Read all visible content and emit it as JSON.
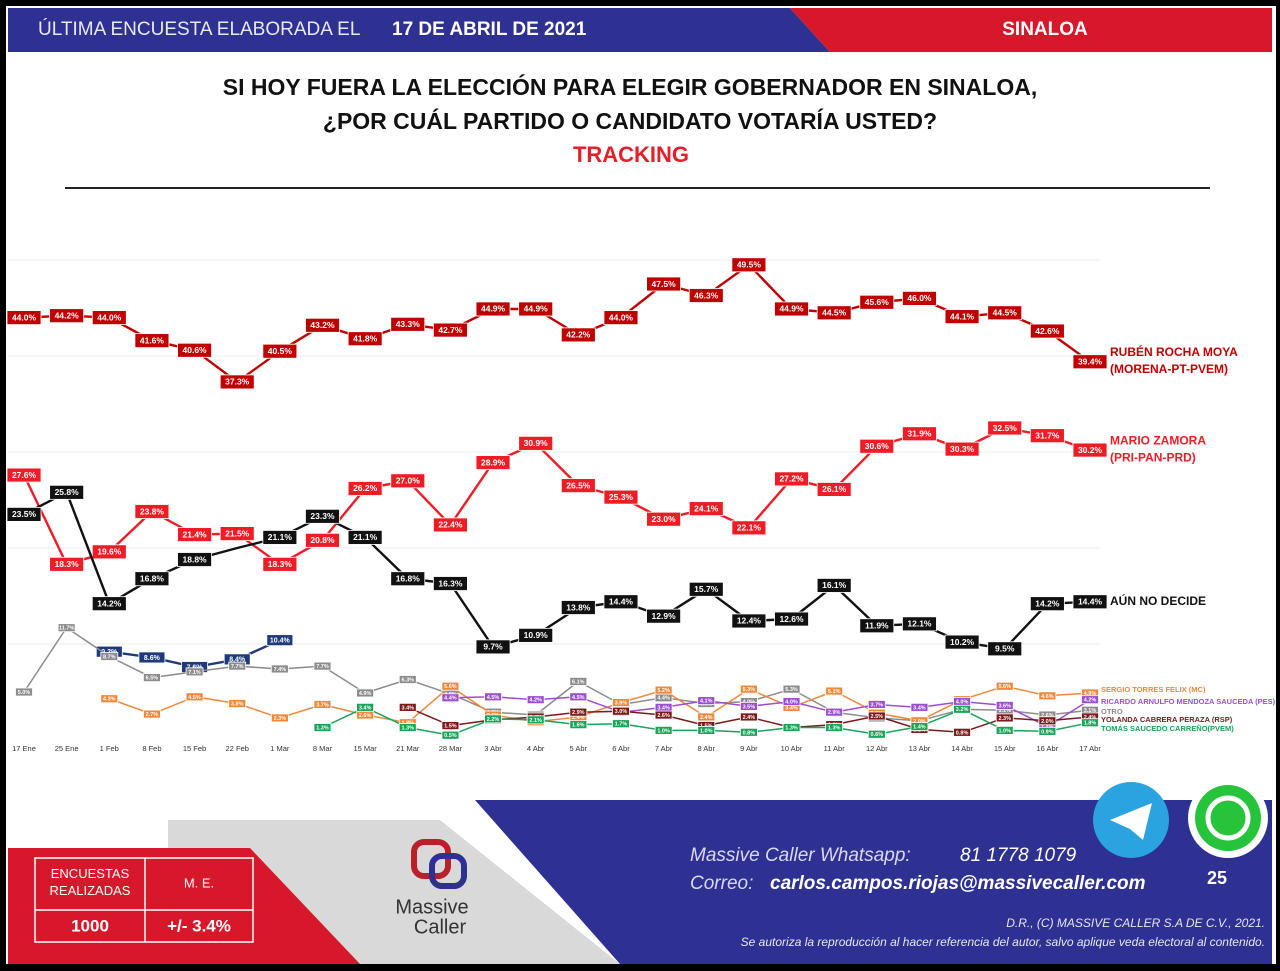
{
  "header": {
    "lead": "ÚLTIMA ENCUESTA ELABORADA EL",
    "date": "17 DE ABRIL DE 2021",
    "region": "SINALOA"
  },
  "chart_data": {
    "type": "line",
    "title": [
      "SI HOY FUERA LA ELECCIÓN PARA ELEGIR GOBERNADOR EN SINALOA,",
      "¿POR CUÁL PARTIDO O CANDIDATO VOTARÍA USTED?"
    ],
    "subtitle": "TRACKING",
    "categories": [
      "17 Ene",
      "25 Ene",
      "1 Feb",
      "8 Feb",
      "15 Feb",
      "22 Feb",
      "1 Mar",
      "8 Mar",
      "15 Mar",
      "21 Mar",
      "28 Mar",
      "3 Abr",
      "4 Abr",
      "5 Abr",
      "6 Abr",
      "7 Abr",
      "8 Abr",
      "9 Abr",
      "10 Abr",
      "11 Abr",
      "12 Abr",
      "13 Abr",
      "14 Abr",
      "15 Abr",
      "16 Abr",
      "17 Abr"
    ],
    "ylim": [
      0,
      55
    ],
    "gridlines": [
      10,
      20,
      30,
      40,
      50
    ],
    "series": [
      {
        "name": "RUBÉN ROCHA MOYA",
        "coalition": "(MORENA-PT-PVEM)",
        "color": "#c00000",
        "values": [
          44.0,
          44.2,
          44.0,
          41.6,
          40.6,
          37.3,
          40.5,
          43.2,
          41.8,
          43.3,
          42.7,
          44.9,
          44.9,
          42.2,
          44.0,
          47.5,
          46.3,
          49.5,
          44.9,
          44.5,
          45.6,
          46.0,
          44.1,
          44.5,
          42.6,
          39.4
        ],
        "value_labels": [
          "44.0%",
          "44.2%",
          "44.0%",
          "41.6%",
          "40.6%",
          "37.3%",
          "40.5%",
          "43.2%",
          "41.8%",
          "43.3%",
          "42.7%",
          "44.9%",
          "44.9%",
          "42.2%",
          "44.0%",
          "47.5%",
          "46.3%",
          "49.5%",
          "44.9%",
          "44.5%",
          "45.6%",
          "46.0%",
          "44.1%",
          "44.5%",
          "42.6%",
          "39.4%"
        ]
      },
      {
        "name": "MARIO ZAMORA",
        "coalition": "(PRI-PAN-PRD)",
        "color": "#ee1c25",
        "values": [
          27.6,
          18.3,
          19.6,
          23.8,
          21.4,
          21.5,
          18.3,
          20.8,
          26.2,
          27.0,
          22.4,
          28.9,
          30.9,
          26.5,
          25.3,
          23.0,
          24.1,
          22.1,
          27.2,
          26.1,
          30.6,
          31.9,
          30.3,
          32.5,
          31.7,
          30.2
        ],
        "value_labels": [
          "27.6%",
          "18.3%",
          "19.6%",
          "23.8%",
          "21.4%",
          "21.5%",
          "18.3%",
          "20.8%",
          "26.2%",
          "27.0%",
          "22.4%",
          "28.9%",
          "30.9%",
          "26.5%",
          "25.3%",
          "23.0%",
          "24.1%",
          "22.1%",
          "27.2%",
          "26.1%",
          "30.6%",
          "31.9%",
          "30.3%",
          "32.5%",
          "31.7%",
          "30.2%"
        ]
      },
      {
        "name": "AÚN NO DECIDE",
        "color": "#111111",
        "values": [
          23.5,
          25.8,
          14.2,
          16.8,
          18.8,
          20.0,
          21.1,
          23.3,
          21.1,
          16.8,
          16.3,
          9.7,
          10.9,
          13.8,
          14.4,
          12.9,
          15.7,
          12.4,
          12.6,
          16.1,
          11.9,
          12.1,
          10.2,
          9.5,
          14.2,
          14.4
        ],
        "value_labels": [
          "23.5%",
          "25.8%",
          "14.2%",
          "16.8%",
          "18.8%",
          null,
          "21.1%",
          "23.3%",
          "21.1%",
          "16.8%",
          "16.3%",
          "9.7%",
          "10.9%",
          "13.8%",
          "14.4%",
          "12.9%",
          "15.7%",
          "12.4%",
          "12.6%",
          "16.1%",
          "11.9%",
          "12.1%",
          "10.2%",
          "9.5%",
          "14.2%",
          "14.4%"
        ]
      },
      {
        "color": "#1f3a7a",
        "values": [
          null,
          null,
          9.2,
          8.6,
          7.6,
          8.4,
          10.4,
          null,
          null,
          null,
          null,
          null,
          null,
          null,
          null,
          null,
          null,
          null,
          null,
          null,
          null,
          null,
          null,
          null,
          null,
          null
        ],
        "value_labels": [
          null,
          null,
          "9.2%",
          "8.6%",
          "7.6%",
          "8.4%",
          "10.4%",
          null,
          null,
          null,
          null,
          null,
          null,
          null,
          null,
          null,
          null,
          null,
          null,
          null,
          null,
          null,
          null,
          null,
          null,
          null
        ]
      },
      {
        "name": "OTRO",
        "color": "#8c8c8c",
        "values": [
          5.0,
          11.7,
          8.7,
          6.5,
          7.1,
          7.7,
          7.4,
          7.7,
          4.9,
          6.3,
          4.8,
          2.9,
          2.6,
          6.1,
          3.7,
          4.4,
          3.8,
          4.0,
          5.3,
          2.9,
          2.3,
          2.0,
          3.2,
          3.1,
          2.6,
          3.1
        ],
        "value_labels": [
          "5.0%",
          "11.7%",
          "8.7%",
          "6.5%",
          "7.1%",
          "7.7%",
          "7.4%",
          "7.7%",
          "4.9%",
          "6.3%",
          "4.8%",
          "2.9%",
          "2.6%",
          "6.1%",
          "3.7%",
          "4.4%",
          "3.8%",
          "4.0%",
          "5.3%",
          "2.9%",
          "2.3%",
          "2.0%",
          "3.2%",
          "3.1%",
          "2.6%",
          "3.1%"
        ]
      },
      {
        "name": "SERGIO TORRES FELIX (MC)",
        "color": "#f0883a",
        "values": [
          null,
          null,
          4.3,
          2.7,
          4.5,
          3.8,
          2.3,
          3.7,
          2.6,
          1.8,
          5.6,
          2.6,
          1.9,
          2.4,
          3.9,
          5.2,
          2.4,
          5.3,
          3.4,
          5.1,
          2.8,
          2.0,
          4.2,
          5.6,
          4.6,
          4.9
        ],
        "value_labels": [
          null,
          null,
          "4.3%",
          "2.7%",
          "4.5%",
          "3.8%",
          "2.3%",
          "3.7%",
          "2.6%",
          "1.8%",
          "5.6%",
          "2.6%",
          "1.9%",
          "2.4%",
          "3.9%",
          "5.2%",
          "2.4%",
          "5.3%",
          "3.4%",
          "5.1%",
          "2.8%",
          "2.0%",
          "4.2%",
          "5.6%",
          "4.6%",
          "4.9%"
        ]
      },
      {
        "name": "RICARDO ARNULFO MENDOZA SAUCEDA  (PES)",
        "color": "#9b4fd0",
        "values": [
          null,
          null,
          null,
          null,
          null,
          null,
          null,
          null,
          null,
          null,
          4.4,
          4.5,
          4.2,
          4.5,
          2.9,
          3.4,
          4.1,
          3.5,
          4.0,
          2.9,
          3.7,
          3.4,
          4.0,
          3.6,
          1.4,
          4.2
        ],
        "value_labels": [
          null,
          null,
          null,
          null,
          null,
          null,
          null,
          null,
          null,
          null,
          "4.4%",
          "4.5%",
          "4.2%",
          "4.5%",
          "2.9%",
          "3.4%",
          "4.1%",
          "3.5%",
          "4.0%",
          "2.9%",
          "3.7%",
          "3.4%",
          "4.0%",
          "3.6%",
          "1.4%",
          "4.2%"
        ]
      },
      {
        "name": "YOLANDA CABRERA PERAZA (RSP)",
        "color": "#7b1a1a",
        "values": [
          null,
          null,
          null,
          null,
          null,
          null,
          null,
          null,
          null,
          3.4,
          1.5,
          2.1,
          2.4,
          2.9,
          3.0,
          2.6,
          1.5,
          2.4,
          1.3,
          1.6,
          2.5,
          1.1,
          0.8,
          2.3,
          2.0,
          2.4
        ],
        "value_labels": [
          null,
          null,
          null,
          null,
          null,
          null,
          null,
          null,
          null,
          "3.4%",
          "1.5%",
          "2.1%",
          "2.4%",
          "2.9%",
          "3.0%",
          "2.6%",
          "1.5%",
          "2.4%",
          "1.3%",
          "1.6%",
          "2.5%",
          "1.1%",
          "0.8%",
          "2.3%",
          "2.0%",
          "2.4%"
        ]
      },
      {
        "name": "TOMÁS SAUCEDO CARREÑO(PVEM)",
        "color": "#1aa35a",
        "values": [
          null,
          null,
          null,
          null,
          null,
          null,
          null,
          1.3,
          3.4,
          1.3,
          0.5,
          2.2,
          2.1,
          1.6,
          1.7,
          1.0,
          1.0,
          0.8,
          1.3,
          1.3,
          0.6,
          1.4,
          3.2,
          1.0,
          0.9,
          1.8
        ],
        "value_labels": [
          null,
          null,
          null,
          null,
          null,
          null,
          null,
          "1.3%",
          "3.4%",
          "1.3%",
          "0.5%",
          "2.2%",
          "2.1%",
          "1.6%",
          "1.7%",
          "1.0%",
          "1.0%",
          "0.8%",
          "1.3%",
          "1.3%",
          "0.6%",
          "1.4%",
          "3.2%",
          "1.0%",
          "0.9%",
          "1.8%"
        ]
      }
    ]
  },
  "footer": {
    "sample_header": "ENCUESTAS REALIZADAS",
    "error_header": "M. E.",
    "sample": "1000",
    "error": "+/- 3.4%",
    "brand": [
      "Massive",
      "Caller"
    ],
    "whatsapp_label": "Massive Caller Whatsapp:",
    "whatsapp": "81 1778 1079",
    "email_label": "Correo:",
    "email": "carlos.campos.riojas@massivecaller.com",
    "page": "25",
    "copyright": "D.R., (C) MASSIVE CALLER S.A DE C.V., 2021.",
    "notice": "Se autoriza la reproducción al hacer referencia del autor, salvo aplique veda electoral al contenido."
  }
}
